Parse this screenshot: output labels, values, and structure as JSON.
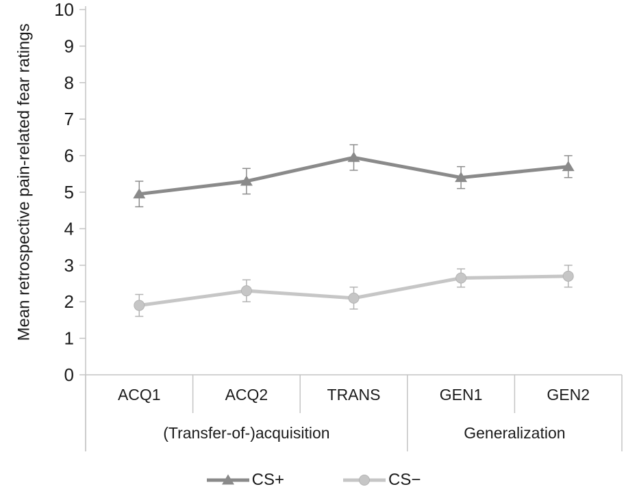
{
  "chart_data": {
    "type": "line",
    "categories": [
      "ACQ1",
      "ACQ2",
      "TRANS",
      "GEN1",
      "GEN2"
    ],
    "category_groups": [
      {
        "label": "(Transfer-of-)acquisition",
        "span": 3
      },
      {
        "label": "Generalization",
        "span": 2
      }
    ],
    "series": [
      {
        "name": "CS+",
        "marker": "triangle",
        "color": "#8a8a8a",
        "error_color": "#8c8c8c",
        "values": [
          4.95,
          5.3,
          5.95,
          5.4,
          5.7
        ],
        "errors": [
          0.35,
          0.35,
          0.35,
          0.3,
          0.3
        ]
      },
      {
        "name": "CS−",
        "marker": "circle",
        "color": "#c6c6c6",
        "error_color": "#b3b3b3",
        "values": [
          1.9,
          2.3,
          2.1,
          2.65,
          2.7
        ],
        "errors": [
          0.3,
          0.3,
          0.3,
          0.25,
          0.3
        ]
      }
    ],
    "title": "",
    "xlabel": "",
    "ylabel": "Mean retrospective pain-related fear ratings",
    "ylim": [
      0,
      10
    ],
    "yticks": [
      0,
      1,
      2,
      3,
      4,
      5,
      6,
      7,
      8,
      9,
      10
    ],
    "grid": false,
    "legend_position": "bottom"
  },
  "style": {
    "axis_color": "#c4c4c4",
    "text_color": "#1a1a1a",
    "background": "#ffffff"
  }
}
